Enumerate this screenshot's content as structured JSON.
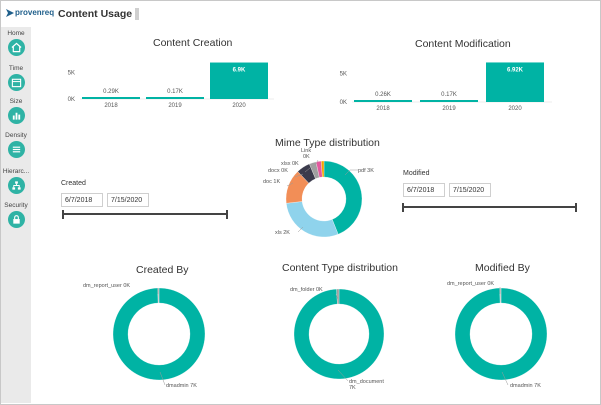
{
  "app": {
    "logo_text": "provenreq",
    "page_title": "Content Usage"
  },
  "sidebar": {
    "items": [
      {
        "label": "Home",
        "icon": "home-icon"
      },
      {
        "label": "Time",
        "icon": "calendar-icon"
      },
      {
        "label": "Size",
        "icon": "bar-chart-icon"
      },
      {
        "label": "Density",
        "icon": "density-icon"
      },
      {
        "label": "Hierarc...",
        "icon": "hierarchy-icon"
      },
      {
        "label": "Security",
        "icon": "lock-icon"
      }
    ]
  },
  "colors": {
    "accent": "#00b3a4",
    "sidebar_bg": "#eaeaea",
    "orange": "#f28e57",
    "light_blue": "#8fd3ec",
    "dark_gray": "#3b3b4c",
    "pink": "#e35a9e",
    "gray": "#a0a0a0",
    "amber": "#f0a300"
  },
  "filters": {
    "created": {
      "label": "Created",
      "start": "6/7/2018",
      "end": "7/15/2020"
    },
    "modified": {
      "label": "Modified",
      "start": "6/7/2018",
      "end": "7/15/2020"
    }
  },
  "chart_data": [
    {
      "type": "bar",
      "title": "Content Creation",
      "categories": [
        "2018",
        "2019",
        "2020"
      ],
      "values": [
        290,
        170,
        6900
      ],
      "data_labels": [
        "0.29K",
        "0.17K",
        "6.9K"
      ],
      "y_ticks": [
        "0K",
        "5K"
      ],
      "ylim": [
        0,
        7000
      ]
    },
    {
      "type": "bar",
      "title": "Content Modification",
      "categories": [
        "2018",
        "2019",
        "2020"
      ],
      "values": [
        260,
        170,
        6920
      ],
      "data_labels": [
        "0.26K",
        "0.17K",
        "6.92K"
      ],
      "y_ticks": [
        "0K",
        "5K"
      ],
      "ylim": [
        0,
        7000
      ]
    },
    {
      "type": "pie",
      "title": "Mime Type distribution",
      "slices": [
        {
          "label": "pdf",
          "value": 3000,
          "display": "pdf 3K",
          "color": "#00b3a4"
        },
        {
          "label": "xls",
          "value": 2000,
          "display": "xls 2K",
          "color": "#8fd3ec"
        },
        {
          "label": "doc",
          "value": 1000,
          "display": "doc 1K",
          "color": "#f28e57"
        },
        {
          "label": "docx",
          "value": 400,
          "display": "docx 0K",
          "color": "#3b3b4c"
        },
        {
          "label": "xlsx",
          "value": 200,
          "display": "xlsx 0K",
          "color": "#a0a0a0"
        },
        {
          "label": "Link",
          "value": 150,
          "display": "Link 0K",
          "color": "#e35a9e"
        },
        {
          "label": "",
          "value": 80,
          "display": "",
          "color": "#f0a300"
        }
      ]
    },
    {
      "type": "pie",
      "title": "Created By",
      "slices": [
        {
          "label": "dmadmin",
          "value": 7000,
          "display": "dmadmin 7K",
          "color": "#00b3a4"
        },
        {
          "label": "dm_report_user",
          "value": 30,
          "display": "dm_report_user 0K",
          "color": "#bdbdbd"
        }
      ]
    },
    {
      "type": "pie",
      "title": "Content Type distribution",
      "slices": [
        {
          "label": "dm_document",
          "value": 7000,
          "display": "dm_document 7K",
          "color": "#00b3a4"
        },
        {
          "label": "dm_folder",
          "value": 60,
          "display": "dm_folder 0K",
          "color": "#9e9e9e"
        }
      ]
    },
    {
      "type": "pie",
      "title": "Modified By",
      "slices": [
        {
          "label": "dmadmin",
          "value": 7000,
          "display": "dmadmin 7K",
          "color": "#00b3a4"
        },
        {
          "label": "dm_report_user",
          "value": 30,
          "display": "dm_report_user 0K",
          "color": "#bdbdbd"
        }
      ]
    }
  ]
}
